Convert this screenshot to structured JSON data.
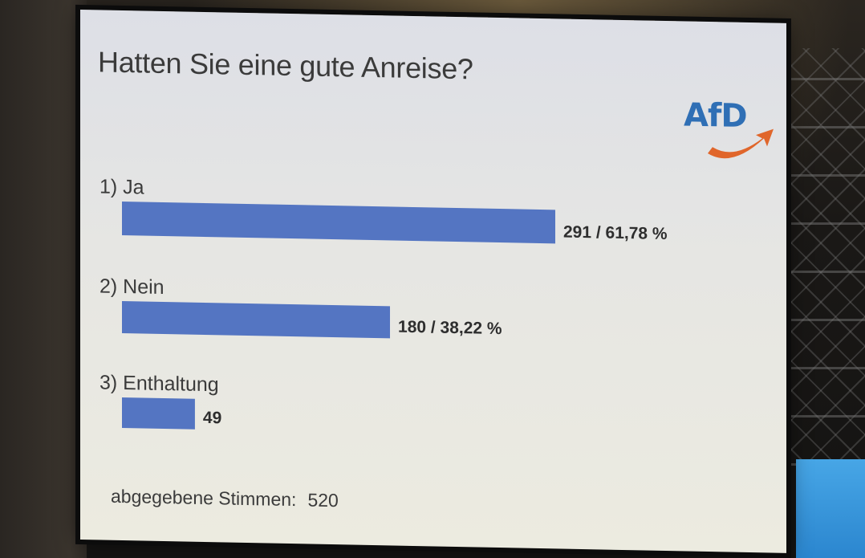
{
  "slide": {
    "title": "Hatten Sie eine gute Anreise?",
    "logo_text": "AfD",
    "footer_label": "abgegebene Stimmen:",
    "footer_value": "520"
  },
  "colors": {
    "bar": "#5475c2",
    "logo_blue": "#2f6fb5",
    "logo_arrow": "#e0662b"
  },
  "chart_data": {
    "type": "bar",
    "orientation": "horizontal",
    "title": "Hatten Sie eine gute Anreise?",
    "categories": [
      "1) Ja",
      "2) Nein",
      "3) Enthaltung"
    ],
    "values": [
      291,
      180,
      49
    ],
    "value_labels": [
      "291 / 61,78 %",
      "180 / 38,22 %",
      "49"
    ],
    "xlim": [
      0,
      291
    ],
    "grid": false
  }
}
